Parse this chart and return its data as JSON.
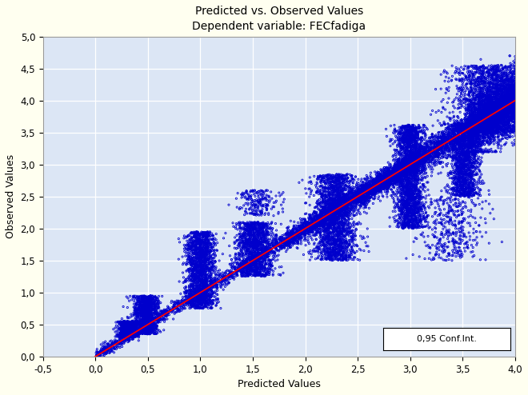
{
  "title_line1": "Predicted vs. Observed Values",
  "title_line2": "Dependent variable: FECfadiga",
  "xlabel": "Predicted Values",
  "ylabel": "Observed Values",
  "xlim": [
    -0.5,
    4.0
  ],
  "ylim": [
    0.0,
    5.0
  ],
  "xticks": [
    -0.5,
    0.0,
    0.5,
    1.0,
    1.5,
    2.0,
    2.5,
    3.0,
    3.5,
    4.0
  ],
  "yticks": [
    0.0,
    0.5,
    1.0,
    1.5,
    2.0,
    2.5,
    3.0,
    3.5,
    4.0,
    4.5,
    5.0
  ],
  "xtick_labels": [
    "-0,5",
    "0,0",
    "0,5",
    "1,0",
    "1,5",
    "2,0",
    "2,5",
    "3,0",
    "3,5",
    "4,0"
  ],
  "ytick_labels": [
    "0,0",
    "0,5",
    "1,0",
    "1,5",
    "2,0",
    "2,5",
    "3,0",
    "3,5",
    "4,0",
    "4,5",
    "5,0"
  ],
  "scatter_color": "#0000CC",
  "line_color": "#FF0000",
  "background_color": "#FFFFF0",
  "plot_bg_color": "#DCE6F5",
  "grid_color": "#FFFFFF",
  "legend_label": "0,95 Conf.Int.",
  "line_slope": 1.0,
  "line_intercept": 0.0,
  "marker_size": 2.5,
  "marker_linewidth": 0.6,
  "title_fontsize": 10,
  "axis_label_fontsize": 9,
  "tick_fontsize": 8.5
}
